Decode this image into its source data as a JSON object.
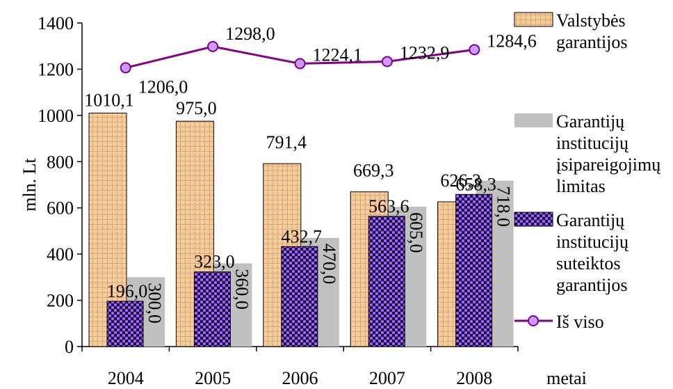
{
  "chart_data": {
    "type": "bar",
    "categories": [
      "2004",
      "2005",
      "2006",
      "2007",
      "2008"
    ],
    "ylabel": "mln. Lt",
    "xlabel": "metai",
    "ylim": [
      0,
      1400
    ],
    "yticks": [
      0,
      200,
      400,
      600,
      800,
      1000,
      1200,
      1400
    ],
    "series": [
      {
        "name": "Valstybės garantijos",
        "kind": "bar",
        "values": [
          1010.1,
          975.0,
          791.4,
          669.3,
          626.3
        ],
        "labels": [
          "1010,1",
          "975,0",
          "791,4",
          "669,3",
          "626,3"
        ],
        "color": "#ffcc99"
      },
      {
        "name": "Garantijų institucijų įsipareigojimų limitas",
        "kind": "bar",
        "values": [
          300.0,
          360.0,
          470.0,
          605.0,
          718.0
        ],
        "labels": [
          "300,0",
          "360,0",
          "470,0",
          "605,0",
          "718,0"
        ],
        "color": "#c0c0c0"
      },
      {
        "name": "Garantijų institucijų suteiktos garantijos",
        "kind": "bar",
        "values": [
          196.0,
          323.0,
          432.7,
          563.6,
          658.3
        ],
        "labels": [
          "196,0",
          "323,0",
          "432,7",
          "563,6",
          "658,3"
        ],
        "color": "#6600cc"
      },
      {
        "name": "Iš viso",
        "kind": "line",
        "values": [
          1206.0,
          1298.0,
          1224.1,
          1232.9,
          1284.6
        ],
        "labels": [
          "1206,0",
          "1298,0",
          "1224,1",
          "1232,9",
          "1284,6"
        ],
        "color": "#800080",
        "marker_color": "#cc99ff"
      }
    ],
    "legend": {
      "placement": "right",
      "items": [
        {
          "lines": [
            "Valstybės",
            "garantijos"
          ]
        },
        {
          "lines": [
            "Garantijų",
            "institucijų",
            "įsipareigojimų",
            "limitas"
          ]
        },
        {
          "lines": [
            "Garantijų",
            "institucijų",
            "suteiktos",
            "garantijos"
          ]
        },
        {
          "lines": [
            "Iš viso"
          ]
        }
      ]
    },
    "grid": false
  }
}
